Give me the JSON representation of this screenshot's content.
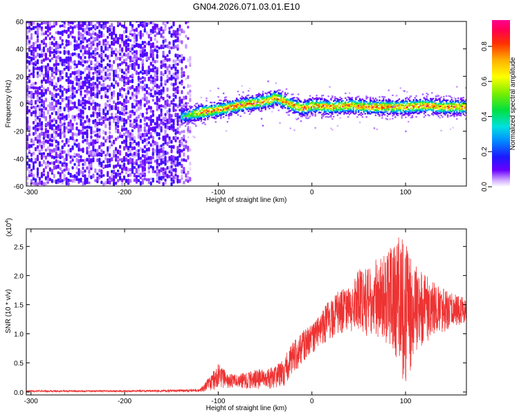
{
  "figure": {
    "title": "GN04.2026.071.03.01.E10"
  },
  "chart_data": [
    {
      "type": "heatmap",
      "title": "GN04.2026.071.03.01.E10",
      "xlabel": "Height of straight line (km)",
      "ylabel": "Frequency (Hz)",
      "xlim": [
        -305,
        165
      ],
      "ylim": [
        -60,
        60
      ],
      "xticks": [
        -300,
        -200,
        -100,
        0,
        100
      ],
      "yticks": [
        -60,
        -40,
        -20,
        0,
        20,
        40,
        60
      ],
      "colorbar": {
        "label": "Normalized spectral amplitude",
        "range": [
          0.0,
          0.95
        ],
        "ticks": [
          0.0,
          0.2,
          0.4,
          0.6,
          0.8
        ],
        "colormap": "rainbow"
      },
      "regions": {
        "noise_x_range": [
          -305,
          -130
        ],
        "ridge_x_range": [
          -140,
          165
        ]
      },
      "ridge_track": {
        "x": [
          -140,
          -120,
          -100,
          -80,
          -60,
          -45,
          -40,
          -30,
          -20,
          -10,
          0,
          20,
          40,
          60,
          80,
          100,
          120,
          140,
          165
        ],
        "y": [
          -10,
          -7,
          -5,
          -2,
          0,
          2,
          4,
          1,
          -2,
          -4,
          -2,
          -3,
          -2,
          -3,
          -3,
          -3,
          -2,
          -3,
          -3
        ]
      },
      "ridge_peak_amplitude": 0.95,
      "background_amplitude": 0.1,
      "grid": false
    },
    {
      "type": "line",
      "title": "",
      "xlabel": "Height of straight line (km)",
      "ylabel": "SNR (10 * v/v)",
      "y_multiplier_label": "(x10",
      "y_multiplier_exponent": "4",
      "y_multiplier_close": ")",
      "xlim": [
        -305,
        165
      ],
      "ylim": [
        -0.05,
        2.8
      ],
      "xticks": [
        -300,
        -200,
        -100,
        0,
        100
      ],
      "yticks": [
        0.0,
        0.5,
        1.0,
        1.5,
        2.0,
        2.5
      ],
      "series": [
        {
          "color": "#ee3333",
          "envelope": {
            "x": [
              -305,
              -200,
              -120,
              -110,
              -100,
              -90,
              -80,
              -60,
              -45,
              -30,
              -20,
              -10,
              0,
              10,
              20,
              30,
              40,
              50,
              60,
              70,
              80,
              90,
              95,
              100,
              105,
              110,
              120,
              130,
              140,
              150,
              165
            ],
            "low": [
              0.0,
              0.0,
              0.0,
              0.02,
              0.05,
              0.06,
              0.06,
              0.05,
              0.05,
              0.1,
              0.3,
              0.5,
              0.65,
              0.8,
              0.9,
              1.0,
              1.05,
              1.0,
              0.9,
              0.9,
              0.8,
              0.6,
              0.3,
              0.1,
              0.3,
              0.7,
              0.8,
              1.0,
              1.0,
              1.1,
              1.2
            ],
            "high": [
              0.03,
              0.03,
              0.05,
              0.25,
              0.5,
              0.32,
              0.3,
              0.38,
              0.4,
              0.6,
              0.88,
              1.05,
              1.15,
              1.35,
              1.65,
              1.75,
              1.8,
              2.1,
              2.2,
              2.3,
              2.4,
              2.6,
              2.75,
              2.6,
              2.3,
              2.2,
              2.05,
              1.9,
              1.8,
              1.7,
              1.6
            ]
          }
        }
      ],
      "grid": false
    }
  ]
}
